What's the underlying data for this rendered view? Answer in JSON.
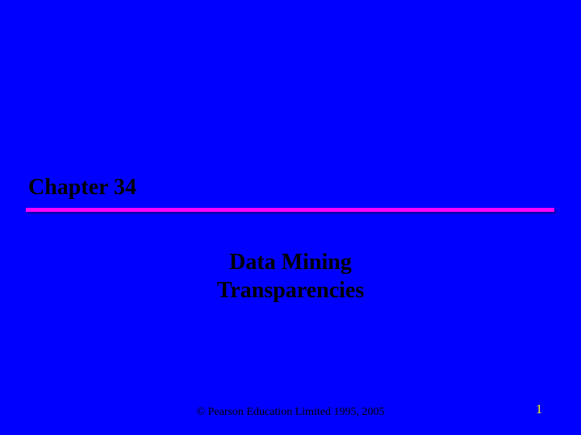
{
  "slide": {
    "background_color": "#0000ff",
    "chapter_heading": "Chapter 34",
    "chapter_heading_color": "#000000",
    "chapter_heading_fontsize": 28,
    "divider_color": "#ff00ff",
    "subtitle_line1": "Data Mining",
    "subtitle_line2": "Transparencies",
    "subtitle_color": "#000000",
    "subtitle_fontsize": 28,
    "copyright": "© Pearson Education Limited 1995, 2005",
    "copyright_color": "#000000",
    "copyright_fontsize": 14,
    "page_number": "1",
    "page_number_color": "#ffff00",
    "page_number_fontsize": 16
  }
}
